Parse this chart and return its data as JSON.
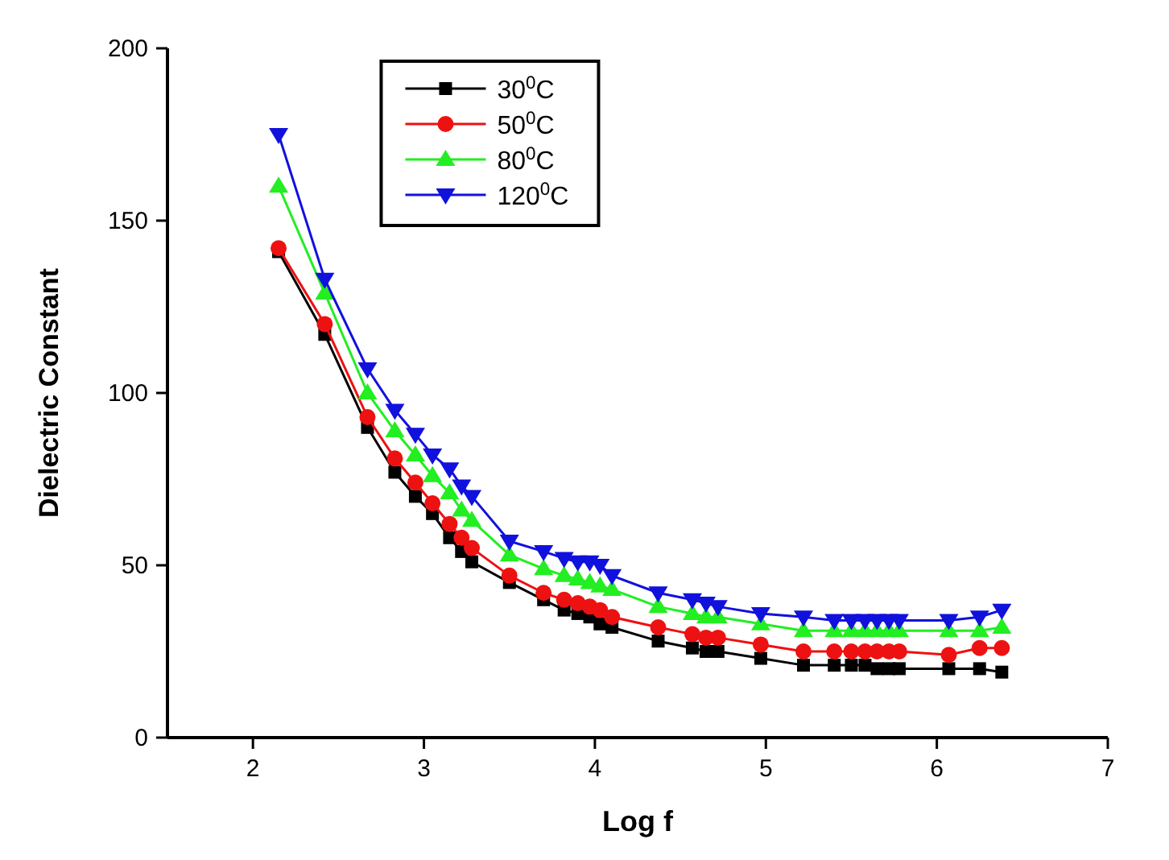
{
  "chart_data": {
    "type": "line",
    "xlabel": "Log f",
    "ylabel": "Dielectric Constant",
    "x": [
      2.15,
      2.42,
      2.67,
      2.83,
      2.95,
      3.05,
      3.15,
      3.22,
      3.28,
      3.5,
      3.7,
      3.82,
      3.9,
      3.97,
      4.03,
      4.1,
      4.37,
      4.57,
      4.65,
      4.72,
      4.97,
      5.22,
      5.4,
      5.5,
      5.58,
      5.65,
      5.72,
      5.78,
      6.07,
      6.25,
      6.38
    ],
    "series": [
      {
        "name": "30$^{0}$C",
        "color": "#000000",
        "marker": "square",
        "values": [
          141,
          117,
          90,
          77,
          70,
          65,
          58,
          54,
          51,
          45,
          40,
          37,
          36,
          35,
          33,
          32,
          28,
          26,
          25,
          25,
          23,
          21,
          21,
          21,
          21,
          20,
          20,
          20,
          20,
          20,
          19
        ]
      },
      {
        "name": "50$^{0}$C",
        "color": "#ee1111",
        "marker": "circle",
        "values": [
          142,
          120,
          93,
          81,
          74,
          68,
          62,
          58,
          55,
          47,
          42,
          40,
          39,
          38,
          37,
          35,
          32,
          30,
          29,
          29,
          27,
          25,
          25,
          25,
          25,
          25,
          25,
          25,
          24,
          26,
          26
        ]
      },
      {
        "name": "80$^{0}$C",
        "color": "#22ee22",
        "marker": "triangle",
        "values": [
          160,
          129,
          100,
          89,
          82,
          76,
          71,
          66,
          63,
          53,
          49,
          47,
          46,
          45,
          44,
          43,
          38,
          36,
          35,
          35,
          33,
          31,
          31,
          31,
          31,
          31,
          31,
          31,
          31,
          31,
          32
        ]
      },
      {
        "name": "120$^{0}$C",
        "color": "#1111dd",
        "marker": "triangle-down",
        "values": [
          175,
          133,
          107,
          95,
          88,
          82,
          78,
          73,
          70,
          57,
          54,
          52,
          51,
          51,
          50,
          47,
          42,
          40,
          39,
          38,
          36,
          35,
          34,
          34,
          34,
          34,
          34,
          34,
          34,
          35,
          37
        ]
      }
    ],
    "xlim": [
      1.5,
      7
    ],
    "xticks": [
      2,
      3,
      4,
      5,
      6,
      7
    ],
    "ylim": [
      0,
      200
    ],
    "yticks": [
      0,
      50,
      100,
      150,
      200
    ],
    "grid": false,
    "legend": "top",
    "line_style": "solid"
  }
}
